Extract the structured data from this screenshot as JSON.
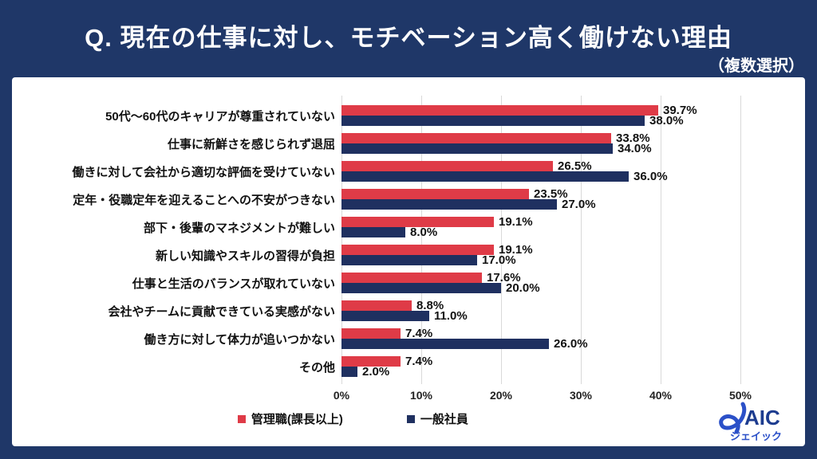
{
  "header": {
    "title": "Q. 現在の仕事に対し、モチベーション高く働けない理由",
    "subtitle": "（複数選択）"
  },
  "chart_data": {
    "type": "bar",
    "orientation": "horizontal",
    "title": "現在の仕事に対し、モチベーション高く働けない理由（複数選択）",
    "categories": [
      "50代～60代のキャリアが尊重されていない",
      "仕事に新鮮さを感じられず退屈",
      "働きに対して会社から適切な評価を受けていない",
      "定年・役職定年を迎えることへの不安がつきない",
      "部下・後輩のマネジメントが難しい",
      "新しい知識やスキルの習得が負担",
      "仕事と生活のバランスが取れていない",
      "会社やチームに貢献できている実感がない",
      "働き方に対して体力が追いつかない",
      "その他"
    ],
    "series": [
      {
        "name": "管理職(課長以上)",
        "color": "#df3b47",
        "values": [
          39.7,
          33.8,
          26.5,
          23.5,
          19.1,
          19.1,
          17.6,
          8.8,
          7.4,
          7.4
        ]
      },
      {
        "name": "一般社員",
        "color": "#1f3060",
        "values": [
          38.0,
          34.0,
          36.0,
          27.0,
          8.0,
          17.0,
          20.0,
          11.0,
          26.0,
          2.0
        ]
      }
    ],
    "value_suffix": "%",
    "value_decimals": 1,
    "xlim": [
      0,
      50
    ],
    "x_ticks": [
      "0%",
      "10%",
      "20%",
      "30%",
      "40%",
      "50%"
    ],
    "grid": true,
    "legend_position": "bottom"
  },
  "brand": {
    "name": "JAIC",
    "letters": "AIC",
    "kana": "ジェイック"
  },
  "colors": {
    "background": "#1f3768",
    "panel": "#ffffff",
    "grid": "#d9d9d9",
    "title_text": "#ffffff",
    "label_text": "#111111",
    "brand_blue": "#2b50c8",
    "brand_navy": "#1d3c8f"
  }
}
